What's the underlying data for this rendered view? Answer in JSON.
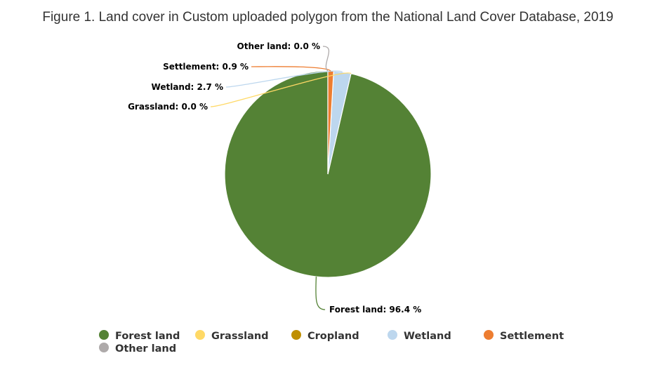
{
  "chart_data": {
    "type": "pie",
    "title": "Figure 1. Land cover in Custom uploaded polygon from the National Land Cover Database, 2019",
    "slices": [
      {
        "name": "Forest land",
        "value": 96.4,
        "label": "Forest land: 96.4 %",
        "color": "#548235"
      },
      {
        "name": "Grassland",
        "value": 0.0,
        "label": "Grassland: 0.0 %",
        "color": "#FFD966"
      },
      {
        "name": "Cropland",
        "value": 0.0,
        "label": "",
        "color": "#BF8F00"
      },
      {
        "name": "Wetland",
        "value": 2.7,
        "label": "Wetland: 2.7 %",
        "color": "#BDD7EE"
      },
      {
        "name": "Settlement",
        "value": 0.9,
        "label": "Settlement: 0.9 %",
        "color": "#ED7D31"
      },
      {
        "name": "Other land",
        "value": 0.0,
        "label": "Other land: 0.0 %",
        "color": "#AEAAAA"
      }
    ],
    "legend": {
      "position": "bottom-center"
    }
  }
}
